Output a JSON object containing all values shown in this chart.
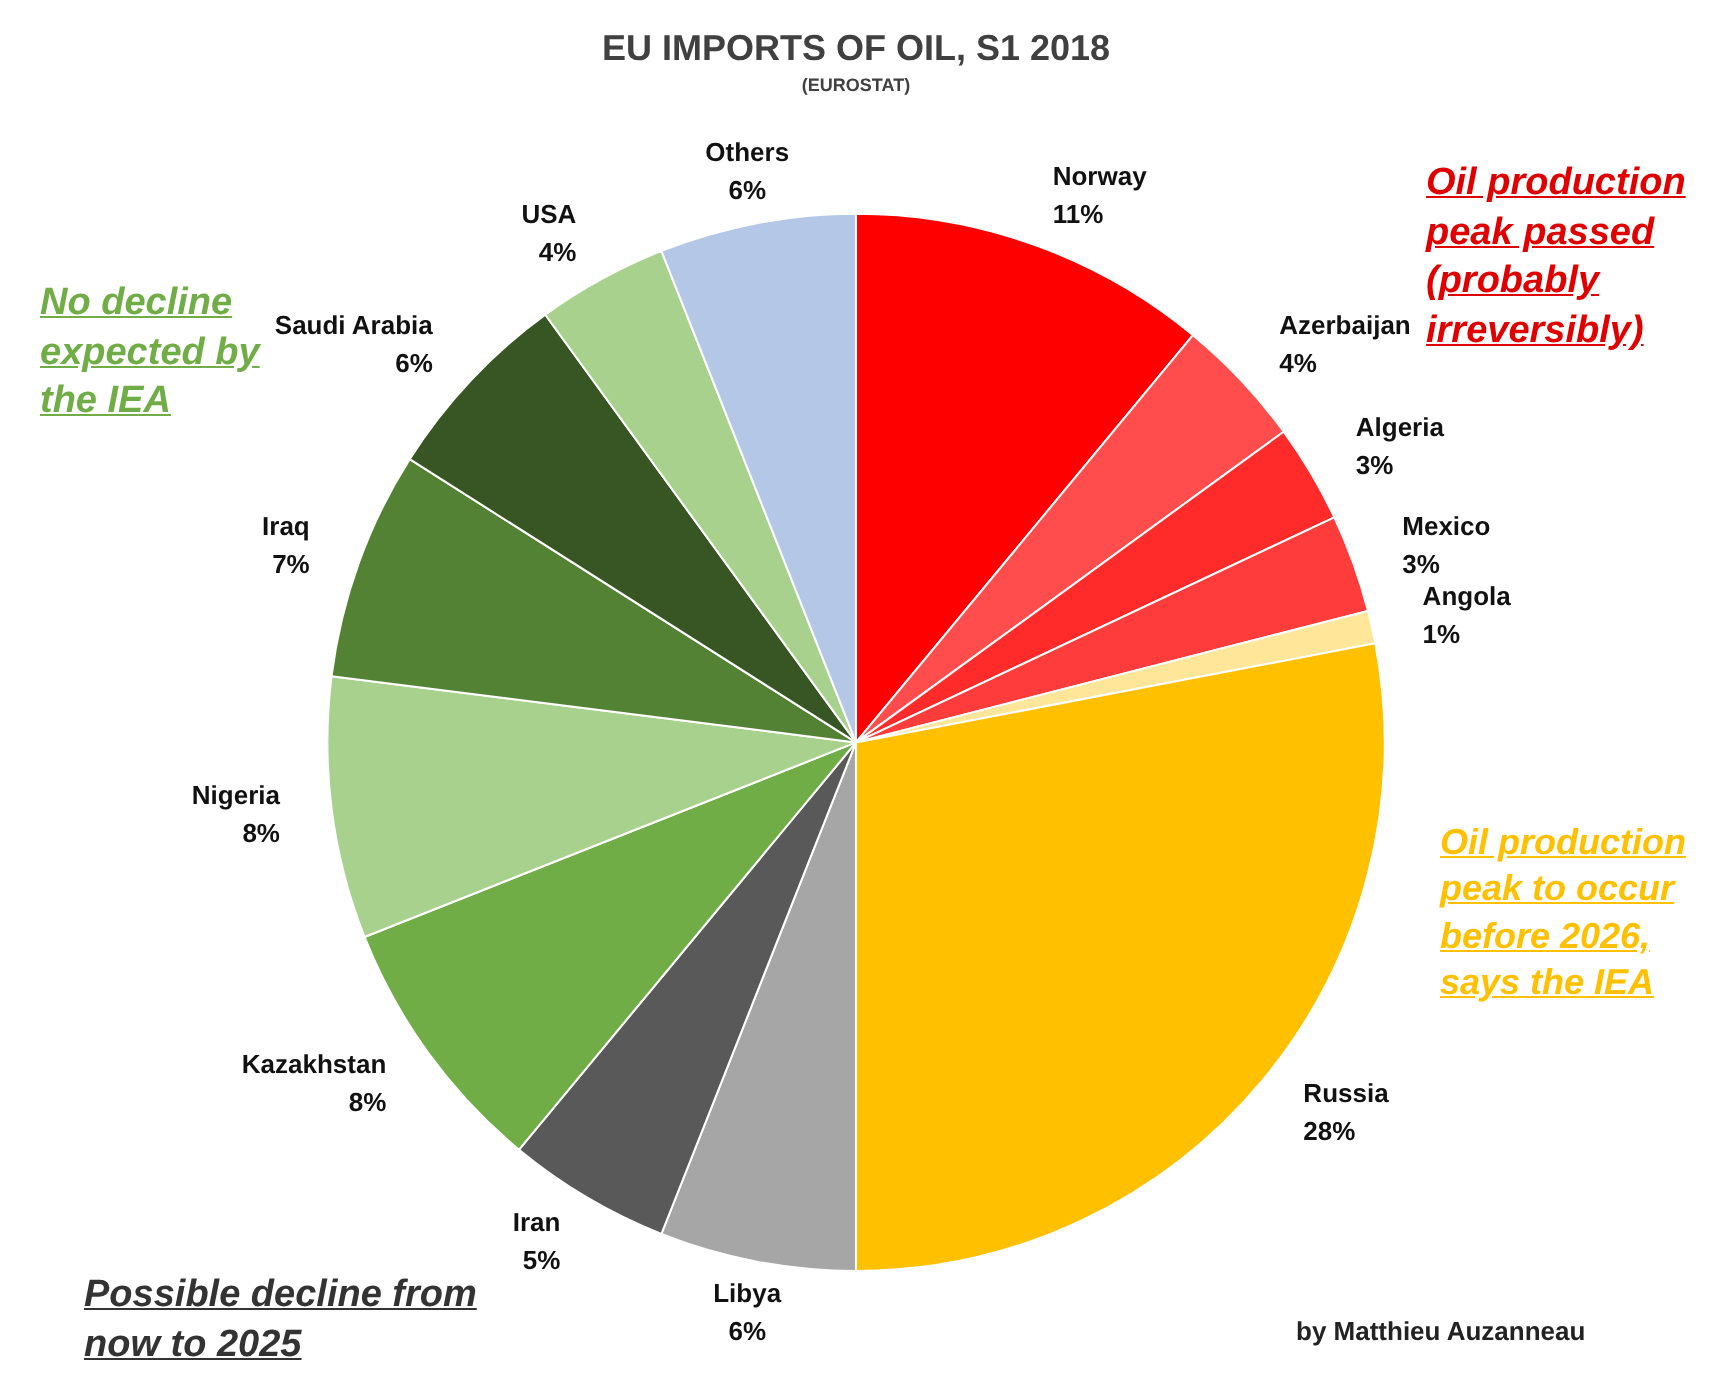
{
  "chart_data": {
    "type": "pie",
    "title": "EU IMPORTS OF OIL, S1 2018",
    "subtitle": "(EUROSTAT)",
    "categories": [
      "Norway",
      "Azerbaijan",
      "Algeria",
      "Mexico",
      "Angola",
      "Russia",
      "Libya",
      "Iran",
      "Kazakhstan",
      "Nigeria",
      "Iraq",
      "Saudi Arabia",
      "USA",
      "Others"
    ],
    "values": [
      11,
      4,
      3,
      3,
      1,
      28,
      6,
      5,
      8,
      8,
      7,
      6,
      4,
      6
    ],
    "value_labels": [
      "11%",
      "4%",
      "3%",
      "3%",
      "1%",
      "28%",
      "6%",
      "5%",
      "8%",
      "8%",
      "7%",
      "6%",
      "4%",
      "6%"
    ],
    "colors": [
      "#ff0000",
      "#ff4d4d",
      "#ff2a2a",
      "#ff3c3c",
      "#ffe699",
      "#ffc000",
      "#a6a6a6",
      "#595959",
      "#70ad47",
      "#a9d18e",
      "#548235",
      "#375623",
      "#a9d18e",
      "#b4c7e7"
    ],
    "legend": false,
    "annotations": [
      "Oil production peak passed (probably irreversibly)",
      "No decline expected by the IEA",
      "Oil production peak to occur before 2026, says the IEA",
      "Possible decline from now to 2025",
      "by Matthieu Auzanneau"
    ]
  }
}
